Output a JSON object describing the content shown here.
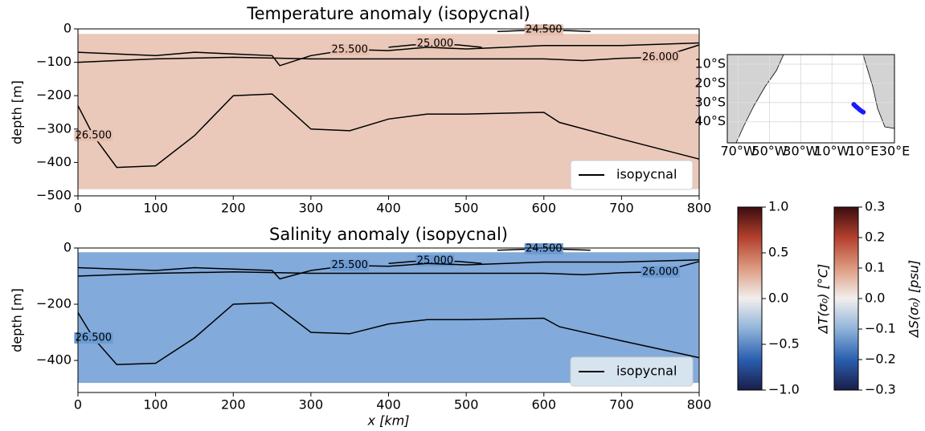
{
  "chart_data": [
    {
      "type": "contour",
      "title": "Temperature anomaly (isopycnal)",
      "y_label": "depth [m]",
      "xlim": [
        0,
        800
      ],
      "xticks": [
        0,
        100,
        200,
        300,
        400,
        500,
        600,
        700,
        800
      ],
      "ylim": [
        -500,
        0
      ],
      "yticks": [
        0,
        {
          "value": -100,
          "label": "−100"
        },
        {
          "value": -200,
          "label": "−200"
        },
        {
          "value": -300,
          "label": "−300"
        },
        {
          "value": -400,
          "label": "−400"
        },
        {
          "value": -500,
          "label": "−500"
        }
      ],
      "field_color": "#e6bfae",
      "legend": "isopycnal",
      "legend_bg": "#ffffff",
      "contours": [
        {
          "label": "24.500",
          "x": [
            540,
            570,
            600,
            630,
            660
          ],
          "depth": [
            -8,
            -5,
            -3,
            -5,
            -8
          ]
        },
        {
          "label": "25.000",
          "x": [
            400,
            430,
            460,
            490,
            520
          ],
          "depth": [
            -55,
            -48,
            -45,
            -48,
            -55
          ]
        },
        {
          "label": "25.500",
          "x": [
            0,
            50,
            100,
            150,
            200,
            250,
            260,
            300,
            350,
            400,
            450,
            500,
            600,
            700,
            800
          ],
          "depth": [
            -70,
            -75,
            -80,
            -70,
            -75,
            -80,
            -110,
            -80,
            -62,
            -65,
            -55,
            -60,
            -50,
            -50,
            -42
          ]
        },
        {
          "label": "26.000",
          "x": [
            0,
            100,
            200,
            300,
            400,
            500,
            600,
            650,
            700,
            750,
            800
          ],
          "depth": [
            -100,
            -90,
            -85,
            -90,
            -90,
            -90,
            -90,
            -95,
            -88,
            -85,
            -48
          ]
        },
        {
          "label": "26.500",
          "x": [
            0,
            20,
            50,
            100,
            150,
            200,
            250,
            300,
            350,
            400,
            450,
            500,
            600,
            620,
            700,
            800
          ],
          "depth": [
            -230,
            -320,
            -415,
            -410,
            -320,
            -200,
            -195,
            -300,
            -305,
            -270,
            -255,
            -255,
            -250,
            -280,
            -330,
            -390
          ]
        }
      ]
    },
    {
      "type": "contour",
      "title": "Salinity anomaly (isopycnal)",
      "y_label": "depth [m]",
      "x_label": "x [km]",
      "xlim": [
        0,
        800
      ],
      "xticks": [
        0,
        100,
        200,
        300,
        400,
        500,
        600,
        700,
        800
      ],
      "ylim": [
        -514,
        0
      ],
      "yticks": [
        0,
        {
          "value": -200,
          "label": "−200"
        },
        {
          "value": -400,
          "label": "−400"
        }
      ],
      "field_color": "#6c9bd3",
      "legend": "isopycnal",
      "legend_bg": "#d6e4f0",
      "contours": [
        {
          "label": "24.500",
          "x": [
            540,
            570,
            600,
            630,
            660
          ],
          "depth": [
            -8,
            -5,
            -3,
            -5,
            -8
          ]
        },
        {
          "label": "25.000",
          "x": [
            400,
            430,
            460,
            490,
            520
          ],
          "depth": [
            -55,
            -48,
            -45,
            -48,
            -55
          ]
        },
        {
          "label": "25.500",
          "x": [
            0,
            50,
            100,
            150,
            200,
            250,
            260,
            300,
            350,
            400,
            450,
            500,
            600,
            700,
            800
          ],
          "depth": [
            -70,
            -75,
            -80,
            -70,
            -75,
            -80,
            -110,
            -80,
            -62,
            -65,
            -55,
            -60,
            -50,
            -50,
            -42
          ]
        },
        {
          "label": "26.000",
          "x": [
            0,
            100,
            200,
            300,
            400,
            500,
            600,
            650,
            700,
            750,
            800
          ],
          "depth": [
            -100,
            -90,
            -85,
            -90,
            -90,
            -90,
            -90,
            -95,
            -88,
            -85,
            -48
          ]
        },
        {
          "label": "26.500",
          "x": [
            0,
            20,
            50,
            100,
            150,
            200,
            250,
            300,
            350,
            400,
            450,
            500,
            600,
            620,
            700,
            800
          ],
          "depth": [
            -230,
            -320,
            -415,
            -410,
            -320,
            -200,
            -195,
            -300,
            -305,
            -270,
            -255,
            -255,
            -250,
            -280,
            -330,
            -390
          ]
        }
      ]
    },
    {
      "type": "map",
      "xlim": [
        -77,
        30
      ],
      "ylim": [
        -51,
        -5
      ],
      "xticks": [
        {
          "value": -70,
          "label": "70°W"
        },
        {
          "value": -50,
          "label": "50°W"
        },
        {
          "value": -30,
          "label": "30°W"
        },
        {
          "value": -10,
          "label": "10°W"
        },
        {
          "value": 10,
          "label": "10°E"
        },
        {
          "value": 30,
          "label": "30°E"
        }
      ],
      "yticks": [
        {
          "value": -10,
          "label": "10°S"
        },
        {
          "value": -20,
          "label": "20°S"
        },
        {
          "value": -30,
          "label": "30°S"
        },
        {
          "value": -40,
          "label": "40°S"
        }
      ],
      "track": {
        "color": "#1a1aff",
        "lon": [
          4,
          5,
          6,
          7,
          8,
          9,
          10
        ],
        "lat": [
          -31,
          -31.8,
          -32.5,
          -33.2,
          -33.9,
          -34.5,
          -35
        ]
      }
    },
    {
      "type": "colorbar",
      "label": "ΔT(σ₀) [°C]",
      "ylim": [
        -1,
        1
      ],
      "yticks": [
        {
          "value": 1,
          "label": "1.0"
        },
        {
          "value": 0.5,
          "label": "0.5"
        },
        {
          "value": 0,
          "label": "0.0"
        },
        {
          "value": -0.5,
          "label": "−0.5"
        },
        {
          "value": -1,
          "label": "−1.0"
        }
      ],
      "colors": [
        "#1a1d48",
        "#2a5fb0",
        "#8fb3d9",
        "#f1efed",
        "#dd9a80",
        "#b3402d",
        "#3c0d10"
      ]
    },
    {
      "type": "colorbar",
      "label": "ΔS(σ₀) [psu]",
      "ylim": [
        -0.3,
        0.3
      ],
      "yticks": [
        {
          "value": 0.3,
          "label": "0.3"
        },
        {
          "value": 0.2,
          "label": "0.2"
        },
        {
          "value": 0.1,
          "label": "0.1"
        },
        {
          "value": 0,
          "label": "0.0"
        },
        {
          "value": -0.1,
          "label": "−0.1"
        },
        {
          "value": -0.2,
          "label": "−0.2"
        },
        {
          "value": -0.3,
          "label": "−0.3"
        }
      ],
      "colors": [
        "#1a1d48",
        "#2a5fb0",
        "#8fb3d9",
        "#f1efed",
        "#dd9a80",
        "#b3402d",
        "#3c0d10"
      ]
    }
  ]
}
